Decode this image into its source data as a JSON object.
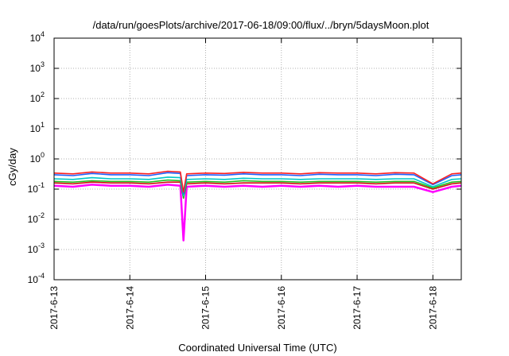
{
  "chart_data": {
    "type": "line",
    "title": "/data/run/goesPlots/archive/2017-06-18/09:00/flux/../bryn/5daysMoon.plot",
    "xlabel": "Coordinated Universal Time (UTC)",
    "ylabel": "cGy/day",
    "yscale": "log",
    "ylim": [
      0.0001,
      10000
    ],
    "xlim": [
      "2017-06-13 00:00",
      "2017-06-18 09:00"
    ],
    "grid": true,
    "y_ticks": [
      {
        "base": "10",
        "exp": "-4"
      },
      {
        "base": "10",
        "exp": "-3"
      },
      {
        "base": "10",
        "exp": "-2"
      },
      {
        "base": "10",
        "exp": "-1"
      },
      {
        "base": "10",
        "exp": "0"
      },
      {
        "base": "10",
        "exp": "1"
      },
      {
        "base": "10",
        "exp": "2"
      },
      {
        "base": "10",
        "exp": "3"
      },
      {
        "base": "10",
        "exp": "4"
      }
    ],
    "x_ticks": [
      "2017-6-13",
      "2017-6-14",
      "2017-6-15",
      "2017-6-16",
      "2017-6-17",
      "2017-6-18"
    ],
    "x_dates": [
      "2017-06-13 00:00",
      "2017-06-13 06:00",
      "2017-06-13 12:00",
      "2017-06-13 18:00",
      "2017-06-14 00:00",
      "2017-06-14 06:00",
      "2017-06-14 12:00",
      "2017-06-14 16:00",
      "2017-06-14 17:00",
      "2017-06-14 18:00",
      "2017-06-15 00:00",
      "2017-06-15 06:00",
      "2017-06-15 12:00",
      "2017-06-15 18:00",
      "2017-06-16 00:00",
      "2017-06-16 06:00",
      "2017-06-16 12:00",
      "2017-06-16 18:00",
      "2017-06-17 00:00",
      "2017-06-17 06:00",
      "2017-06-17 12:00",
      "2017-06-17 18:00",
      "2017-06-18 00:00",
      "2017-06-18 06:00",
      "2017-06-18 09:00"
    ],
    "series": [
      {
        "color": "#ff00ff",
        "values": [
          0.13,
          0.12,
          0.14,
          0.13,
          0.13,
          0.12,
          0.14,
          0.13,
          0.002,
          0.12,
          0.13,
          0.12,
          0.13,
          0.12,
          0.13,
          0.12,
          0.13,
          0.12,
          0.13,
          0.12,
          0.12,
          0.12,
          0.08,
          0.12,
          0.13
        ]
      },
      {
        "color": "#d01010",
        "values": [
          0.16,
          0.15,
          0.17,
          0.16,
          0.16,
          0.15,
          0.17,
          0.17,
          0.05,
          0.15,
          0.16,
          0.15,
          0.16,
          0.16,
          0.16,
          0.15,
          0.16,
          0.16,
          0.16,
          0.15,
          0.16,
          0.16,
          0.1,
          0.15,
          0.16
        ]
      },
      {
        "color": "#20c020",
        "values": [
          0.18,
          0.17,
          0.19,
          0.18,
          0.18,
          0.17,
          0.2,
          0.19,
          0.05,
          0.17,
          0.18,
          0.17,
          0.19,
          0.18,
          0.18,
          0.17,
          0.18,
          0.18,
          0.18,
          0.17,
          0.18,
          0.18,
          0.11,
          0.17,
          0.18
        ]
      },
      {
        "color": "#00c8c8",
        "values": [
          0.22,
          0.21,
          0.24,
          0.22,
          0.22,
          0.21,
          0.25,
          0.24,
          0.06,
          0.21,
          0.22,
          0.21,
          0.23,
          0.22,
          0.22,
          0.21,
          0.22,
          0.22,
          0.22,
          0.21,
          0.22,
          0.22,
          0.12,
          0.21,
          0.22
        ]
      },
      {
        "color": "#1e60ff",
        "values": [
          0.3,
          0.28,
          0.33,
          0.3,
          0.3,
          0.28,
          0.35,
          0.33,
          0.07,
          0.28,
          0.3,
          0.29,
          0.32,
          0.3,
          0.3,
          0.28,
          0.31,
          0.3,
          0.3,
          0.28,
          0.31,
          0.3,
          0.14,
          0.28,
          0.3
        ]
      },
      {
        "color": "#ff2020",
        "values": [
          0.34,
          0.32,
          0.37,
          0.34,
          0.34,
          0.32,
          0.39,
          0.37,
          0.08,
          0.32,
          0.34,
          0.33,
          0.36,
          0.34,
          0.34,
          0.32,
          0.35,
          0.34,
          0.34,
          0.32,
          0.35,
          0.34,
          0.15,
          0.32,
          0.34
        ]
      }
    ]
  }
}
